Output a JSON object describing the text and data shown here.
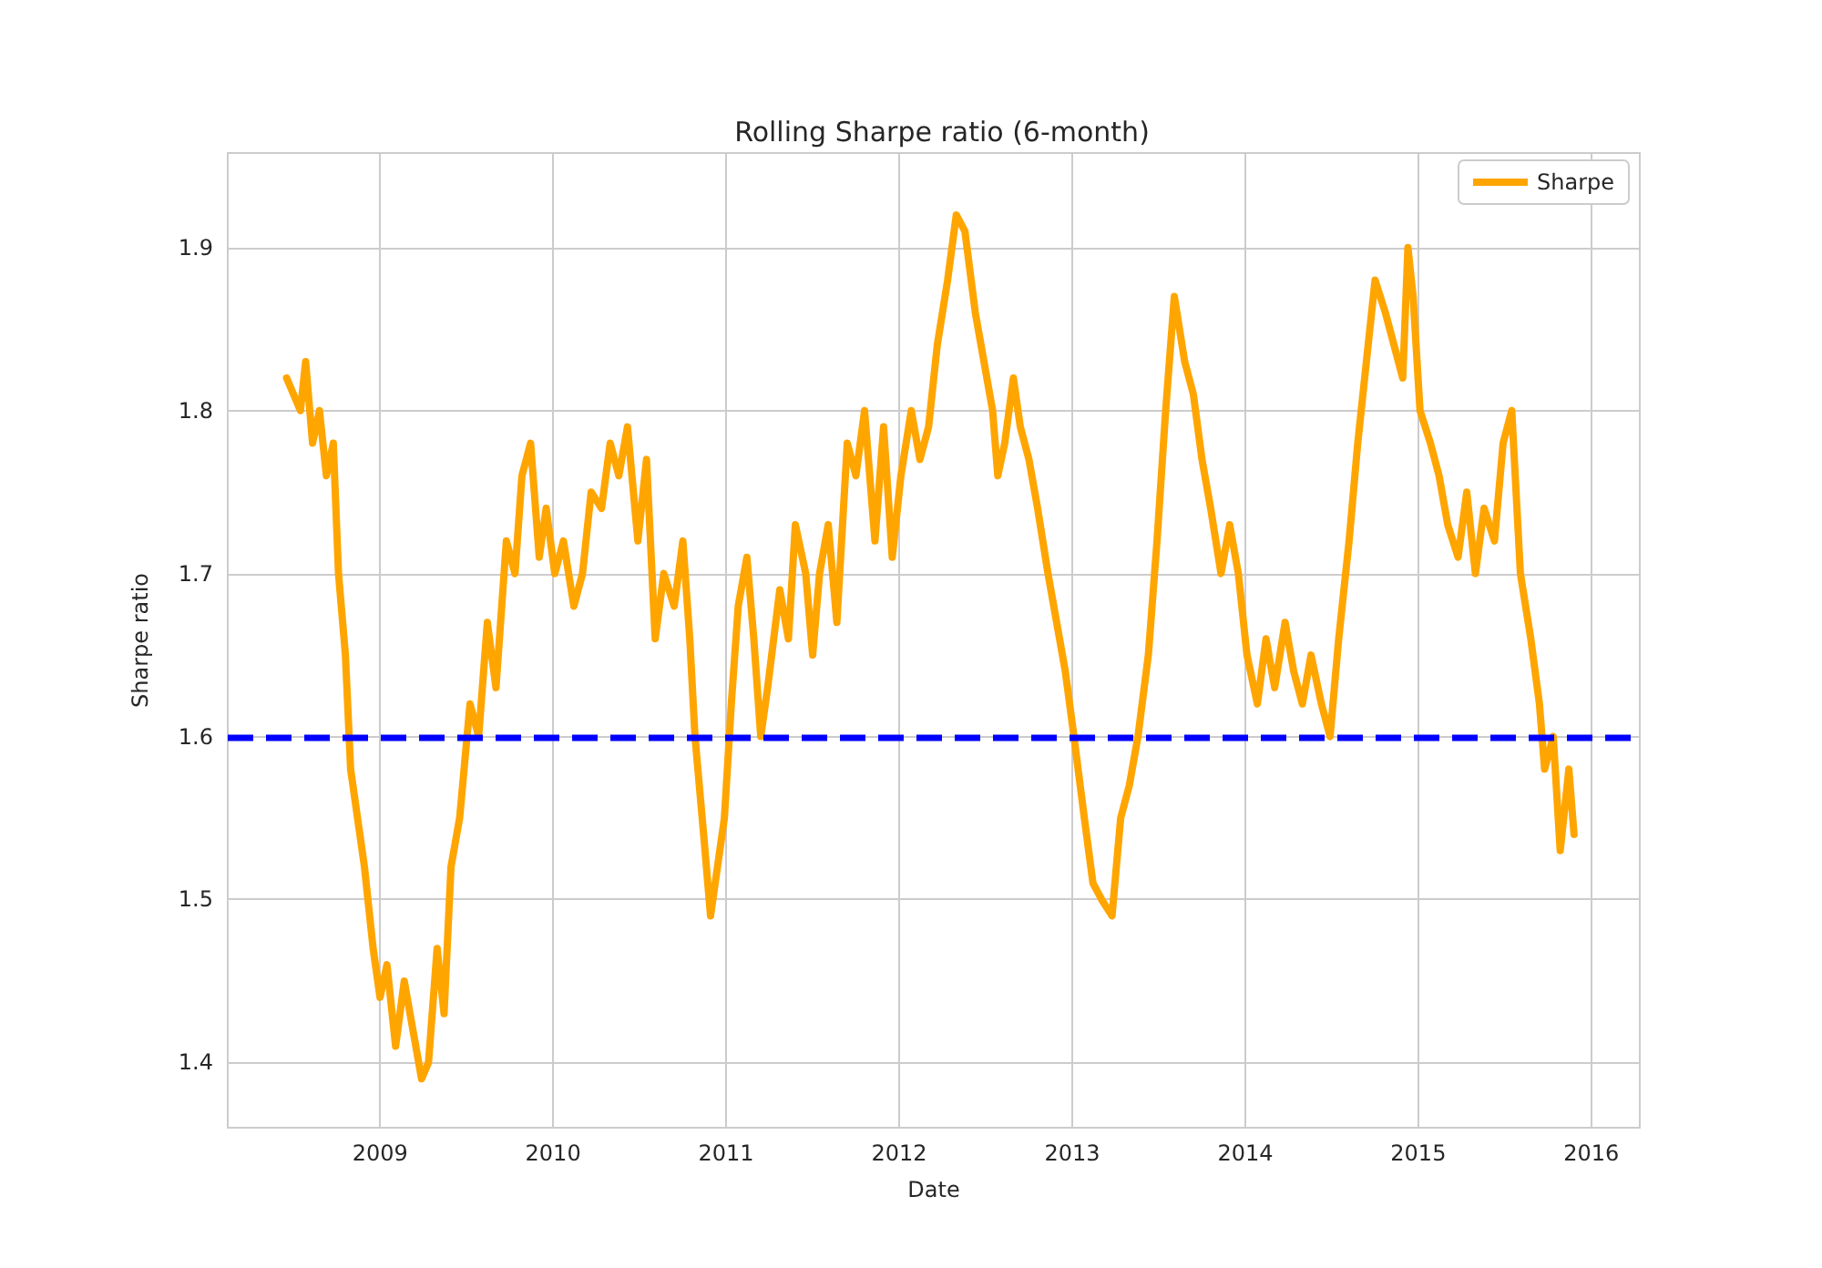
{
  "chart_data": {
    "type": "line",
    "title": "Rolling Sharpe ratio (6-month)",
    "xlabel": "Date",
    "ylabel": "Sharpe ratio",
    "xlim": [
      2008.12,
      2016.28
    ],
    "xticks": [
      2009,
      2010,
      2011,
      2012,
      2013,
      2014,
      2015,
      2016
    ],
    "ylim": [
      1.36,
      1.958
    ],
    "yticks": [
      1.4,
      1.5,
      1.6,
      1.7,
      1.8,
      1.9
    ],
    "grid": true,
    "legend": "top right",
    "marker": "none",
    "line_style": "solid",
    "ref_lines": [
      {
        "axis": "y",
        "value": 1.6,
        "color": "#0000ff",
        "line_style": "dashed"
      }
    ],
    "series": [
      {
        "name": "Sharpe",
        "color": "#ffa500",
        "x": [
          2008.46,
          2008.54,
          2008.57,
          2008.61,
          2008.65,
          2008.69,
          2008.73,
          2008.76,
          2008.8,
          2008.83,
          2008.87,
          2008.91,
          2008.96,
          2009.0,
          2009.04,
          2009.09,
          2009.14,
          2009.19,
          2009.24,
          2009.28,
          2009.33,
          2009.37,
          2009.41,
          2009.46,
          2009.52,
          2009.57,
          2009.62,
          2009.67,
          2009.73,
          2009.78,
          2009.82,
          2009.87,
          2009.92,
          2009.96,
          2010.01,
          2010.06,
          2010.12,
          2010.17,
          2010.22,
          2010.28,
          2010.33,
          2010.38,
          2010.43,
          2010.49,
          2010.54,
          2010.59,
          2010.64,
          2010.7,
          2010.75,
          2010.79,
          2010.82,
          2010.87,
          2010.91,
          2010.95,
          2010.99,
          2011.03,
          2011.07,
          2011.12,
          2011.16,
          2011.2,
          2011.24,
          2011.31,
          2011.36,
          2011.4,
          2011.46,
          2011.5,
          2011.54,
          2011.59,
          2011.64,
          2011.7,
          2011.75,
          2011.8,
          2011.86,
          2011.91,
          2011.96,
          2012.01,
          2012.07,
          2012.12,
          2012.17,
          2012.22,
          2012.28,
          2012.33,
          2012.38,
          2012.44,
          2012.49,
          2012.54,
          2012.57,
          2012.61,
          2012.66,
          2012.7,
          2012.75,
          2012.8,
          2012.86,
          2012.91,
          2012.96,
          2013.01,
          2013.07,
          2013.12,
          2013.17,
          2013.23,
          2013.28,
          2013.33,
          2013.38,
          2013.44,
          2013.49,
          2013.54,
          2013.59,
          2013.65,
          2013.7,
          2013.75,
          2013.8,
          2013.86,
          2013.91,
          2013.96,
          2014.01,
          2014.07,
          2014.12,
          2014.17,
          2014.23,
          2014.28,
          2014.33,
          2014.38,
          2014.44,
          2014.49,
          2014.54,
          2014.6,
          2014.65,
          2014.7,
          2014.75,
          2014.81,
          2014.86,
          2014.91,
          2014.94,
          2014.97,
          2015.01,
          2015.07,
          2015.12,
          2015.17,
          2015.23,
          2015.28,
          2015.33,
          2015.38,
          2015.44,
          2015.49,
          2015.54,
          2015.59,
          2015.65,
          2015.7,
          2015.73,
          2015.78,
          2015.82,
          2015.87,
          2015.9
        ],
        "values": [
          1.82,
          1.8,
          1.83,
          1.78,
          1.8,
          1.76,
          1.78,
          1.7,
          1.65,
          1.58,
          1.55,
          1.52,
          1.47,
          1.44,
          1.46,
          1.41,
          1.45,
          1.42,
          1.39,
          1.4,
          1.47,
          1.43,
          1.52,
          1.55,
          1.62,
          1.6,
          1.67,
          1.63,
          1.72,
          1.7,
          1.76,
          1.78,
          1.71,
          1.74,
          1.7,
          1.72,
          1.68,
          1.7,
          1.75,
          1.74,
          1.78,
          1.76,
          1.79,
          1.72,
          1.77,
          1.66,
          1.7,
          1.68,
          1.72,
          1.66,
          1.6,
          1.54,
          1.49,
          1.52,
          1.55,
          1.62,
          1.68,
          1.71,
          1.66,
          1.6,
          1.63,
          1.69,
          1.66,
          1.73,
          1.7,
          1.65,
          1.7,
          1.73,
          1.67,
          1.78,
          1.76,
          1.8,
          1.72,
          1.79,
          1.71,
          1.76,
          1.8,
          1.77,
          1.79,
          1.84,
          1.88,
          1.92,
          1.91,
          1.86,
          1.83,
          1.8,
          1.76,
          1.78,
          1.82,
          1.79,
          1.77,
          1.74,
          1.7,
          1.67,
          1.64,
          1.6,
          1.55,
          1.51,
          1.5,
          1.49,
          1.55,
          1.57,
          1.6,
          1.65,
          1.72,
          1.8,
          1.87,
          1.83,
          1.81,
          1.77,
          1.74,
          1.7,
          1.73,
          1.7,
          1.65,
          1.62,
          1.66,
          1.63,
          1.67,
          1.64,
          1.62,
          1.65,
          1.62,
          1.6,
          1.66,
          1.72,
          1.78,
          1.83,
          1.88,
          1.86,
          1.84,
          1.82,
          1.9,
          1.87,
          1.8,
          1.78,
          1.76,
          1.73,
          1.71,
          1.75,
          1.7,
          1.74,
          1.72,
          1.78,
          1.8,
          1.7,
          1.66,
          1.62,
          1.58,
          1.6,
          1.53,
          1.58,
          1.54
        ]
      }
    ]
  }
}
